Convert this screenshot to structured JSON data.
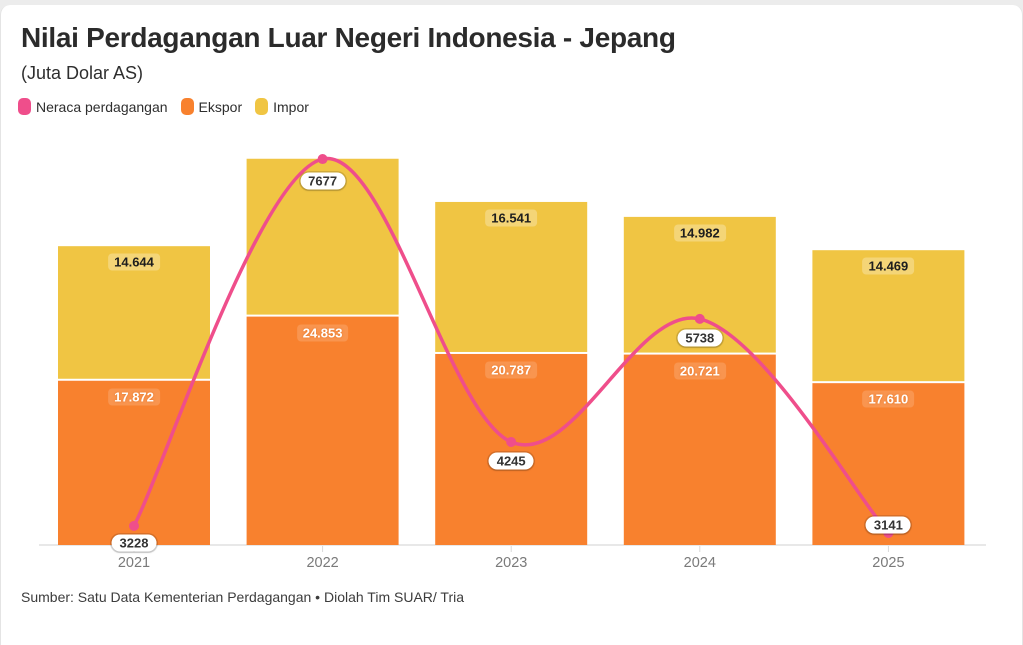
{
  "header": {
    "title": "Nilai Perdagangan Luar Negeri Indonesia - Jepang",
    "subtitle": "(Juta Dolar AS)"
  },
  "legend": {
    "items": [
      {
        "id": "neraca",
        "label": "Neraca perdagangan",
        "color": "#EF4E8B"
      },
      {
        "id": "ekspor",
        "label": "Ekspor",
        "color": "#F8812E"
      },
      {
        "id": "impor",
        "label": "Impor",
        "color": "#F0C543"
      }
    ]
  },
  "chart_data": {
    "type": "bar",
    "stacked": true,
    "overlay": "line",
    "title": "Nilai Perdagangan Luar Negeri Indonesia - Jepang",
    "subtitle": "(Juta Dolar AS)",
    "categories": [
      "2021",
      "2022",
      "2023",
      "2024",
      "2025"
    ],
    "series": [
      {
        "name": "Ekspor",
        "type": "bar",
        "color": "#F8812E",
        "values": [
          17872,
          24853,
          20787,
          20721,
          17610
        ],
        "labels": [
          "17.872",
          "24.853",
          "20.787",
          "20.721",
          "17.610"
        ]
      },
      {
        "name": "Impor",
        "type": "bar",
        "color": "#F0C543",
        "values": [
          14644,
          17176,
          16541,
          14982,
          14469
        ],
        "labels": [
          "14.644",
          null,
          "16.541",
          "14.982",
          "14.469"
        ]
      },
      {
        "name": "Neraca perdagangan",
        "type": "line",
        "color": "#EF4E8B",
        "values": [
          3228,
          7677,
          4245,
          5738,
          3141
        ],
        "labels": [
          "3228",
          "7677",
          "4245",
          "5738",
          "3141"
        ],
        "label_dy": [
          12,
          17,
          14,
          14,
          -13
        ]
      }
    ],
    "ylim": [
      0,
      44000
    ],
    "line_axis_range": [
      2996,
      7790
    ],
    "grid": false,
    "legend_position": "top-left",
    "axis_colors": {
      "axis_line": "#e0e0e0",
      "tick": "#d9d9d9",
      "xlabel": "#7a7a7a"
    },
    "divider_color": "#ffffff"
  },
  "source": {
    "text": "Sumber: Satu Data Kementerian Perdagangan • Diolah Tim SUAR/ Tria"
  }
}
